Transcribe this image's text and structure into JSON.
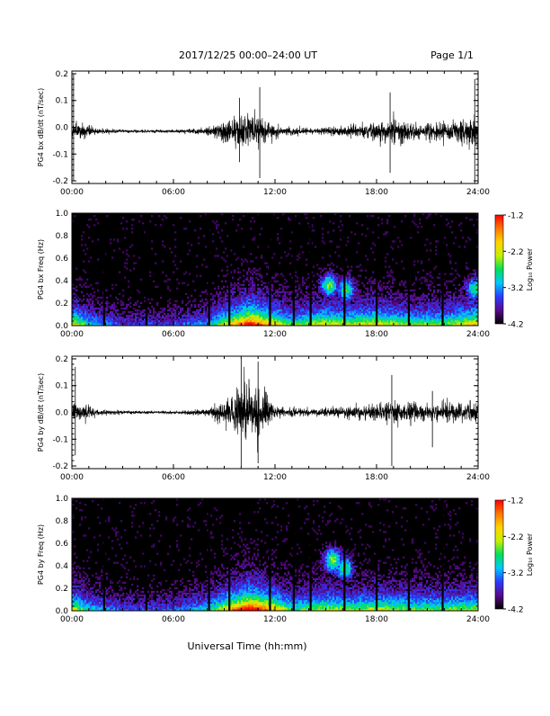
{
  "header": {
    "title": "2017/12/25  00:00–24:00 UT",
    "page": "Page 1/1"
  },
  "xlabel": "Universal Time (hh:mm)",
  "colorbar": {
    "label": "Log₁₀ Power",
    "ticks": [
      "-1.2",
      "-2.2",
      "-3.2",
      "-4.2"
    ],
    "range": [
      -4.2,
      -1.2
    ],
    "colors": [
      "#000000",
      "#5a0a8c",
      "#2a3cff",
      "#00c8ff",
      "#00e05a",
      "#c8f000",
      "#ffd400",
      "#ff7800",
      "#ff0000"
    ]
  },
  "chart_data": [
    {
      "type": "line",
      "ylabel": "PG4 bx dB/dt (nT/sec)",
      "x_range_hours": [
        0,
        24
      ],
      "xticks": [
        "00:00",
        "06:00",
        "12:00",
        "18:00",
        "24:00"
      ],
      "ylim": [
        -0.21,
        0.21
      ],
      "yticks": [
        "-0.2",
        "-0.1",
        "0.0",
        "0.1",
        "0.2"
      ],
      "baseline": -0.015,
      "activity": [
        {
          "hour": 0.0,
          "amp": 0.06
        },
        {
          "hour": 0.3,
          "amp": 0.05
        },
        {
          "hour": 1.5,
          "amp": 0.015
        },
        {
          "hour": 3.0,
          "amp": 0.008
        },
        {
          "hour": 6.0,
          "amp": 0.008
        },
        {
          "hour": 8.0,
          "amp": 0.02
        },
        {
          "hour": 9.5,
          "amp": 0.07
        },
        {
          "hour": 10.2,
          "amp": 0.12
        },
        {
          "hour": 11.0,
          "amp": 0.09
        },
        {
          "hour": 12.0,
          "amp": 0.03
        },
        {
          "hour": 14.0,
          "amp": 0.015
        },
        {
          "hour": 16.0,
          "amp": 0.03
        },
        {
          "hour": 18.0,
          "amp": 0.05
        },
        {
          "hour": 19.0,
          "amp": 0.07
        },
        {
          "hour": 20.5,
          "amp": 0.04
        },
        {
          "hour": 22.5,
          "amp": 0.06
        },
        {
          "hour": 24.0,
          "amp": 0.09
        }
      ],
      "spikes": [
        {
          "hour": 0.1,
          "min": -0.2,
          "max": 0.2
        },
        {
          "hour": 9.9,
          "min": -0.13,
          "max": 0.11
        },
        {
          "hour": 11.1,
          "min": -0.19,
          "max": 0.15
        },
        {
          "hour": 18.8,
          "min": -0.17,
          "max": 0.13
        },
        {
          "hour": 23.8,
          "min": -0.21,
          "max": 0.18
        }
      ]
    },
    {
      "type": "heatmap",
      "ylabel": "PG4 bx Freq (Hz)",
      "x_range_hours": [
        0,
        24
      ],
      "xticks": [
        "00:00",
        "06:00",
        "12:00",
        "18:00",
        "24:00"
      ],
      "ylim": [
        0.0,
        1.0
      ],
      "yticks": [
        "0.0",
        "0.2",
        "0.4",
        "0.6",
        "0.8",
        "1.0"
      ],
      "zlim": [
        -4.2,
        -1.2
      ],
      "activity": [
        {
          "hour": 0.0,
          "level": 0.55
        },
        {
          "hour": 1.0,
          "level": 0.35
        },
        {
          "hour": 3.0,
          "level": 0.2
        },
        {
          "hour": 6.0,
          "level": 0.2
        },
        {
          "hour": 8.0,
          "level": 0.3
        },
        {
          "hour": 9.5,
          "level": 0.6
        },
        {
          "hour": 10.5,
          "level": 0.8
        },
        {
          "hour": 11.5,
          "level": 0.65
        },
        {
          "hour": 13.0,
          "level": 0.4
        },
        {
          "hour": 15.0,
          "level": 0.55
        },
        {
          "hour": 16.5,
          "level": 0.5
        },
        {
          "hour": 18.0,
          "level": 0.55
        },
        {
          "hour": 20.0,
          "level": 0.45
        },
        {
          "hour": 22.0,
          "level": 0.45
        },
        {
          "hour": 24.0,
          "level": 0.6
        }
      ],
      "gaps_hours": [
        1.9,
        4.4,
        8.1,
        9.3,
        11.7,
        13.1,
        14.1,
        16.1,
        18.0,
        19.9,
        21.9
      ],
      "blobs": [
        {
          "hour": 15.2,
          "freq": 0.36,
          "level": 0.55
        },
        {
          "hour": 16.2,
          "freq": 0.32,
          "level": 0.5
        },
        {
          "hour": 23.8,
          "freq": 0.33,
          "level": 0.5
        }
      ]
    },
    {
      "type": "line",
      "ylabel": "PG4 by dB/dt (nT/sec)",
      "x_range_hours": [
        0,
        24
      ],
      "xticks": [
        "00:00",
        "06:00",
        "12:00",
        "18:00",
        "24:00"
      ],
      "ylim": [
        -0.21,
        0.21
      ],
      "yticks": [
        "-0.2",
        "-0.1",
        "0.0",
        "0.1",
        "0.2"
      ],
      "baseline": 0.0,
      "activity": [
        {
          "hour": 0.0,
          "amp": 0.06
        },
        {
          "hour": 0.3,
          "amp": 0.05
        },
        {
          "hour": 1.5,
          "amp": 0.02
        },
        {
          "hour": 3.0,
          "amp": 0.01
        },
        {
          "hour": 6.0,
          "amp": 0.008
        },
        {
          "hour": 8.0,
          "amp": 0.02
        },
        {
          "hour": 9.5,
          "amp": 0.1
        },
        {
          "hour": 10.3,
          "amp": 0.17
        },
        {
          "hour": 11.2,
          "amp": 0.13
        },
        {
          "hour": 12.0,
          "amp": 0.03
        },
        {
          "hour": 14.0,
          "amp": 0.02
        },
        {
          "hour": 16.0,
          "amp": 0.03
        },
        {
          "hour": 18.0,
          "amp": 0.05
        },
        {
          "hour": 19.0,
          "amp": 0.07
        },
        {
          "hour": 21.0,
          "amp": 0.04
        },
        {
          "hour": 22.5,
          "amp": 0.05
        },
        {
          "hour": 24.0,
          "amp": 0.06
        }
      ],
      "spikes": [
        {
          "hour": 0.2,
          "min": -0.16,
          "max": 0.17
        },
        {
          "hour": 10.0,
          "min": -0.2,
          "max": 0.2
        },
        {
          "hour": 11.0,
          "min": -0.19,
          "max": 0.19
        },
        {
          "hour": 18.9,
          "min": -0.2,
          "max": 0.14
        },
        {
          "hour": 21.3,
          "min": -0.13,
          "max": 0.08
        }
      ]
    },
    {
      "type": "heatmap",
      "ylabel": "PG4 by Freq (Hz)",
      "x_range_hours": [
        0,
        24
      ],
      "xticks": [
        "00:00",
        "06:00",
        "12:00",
        "18:00",
        "24:00"
      ],
      "ylim": [
        0.0,
        1.0
      ],
      "yticks": [
        "0.0",
        "0.2",
        "0.4",
        "0.6",
        "0.8",
        "1.0"
      ],
      "zlim": [
        -4.2,
        -1.2
      ],
      "activity": [
        {
          "hour": 0.0,
          "level": 0.55
        },
        {
          "hour": 1.0,
          "level": 0.35
        },
        {
          "hour": 3.0,
          "level": 0.22
        },
        {
          "hour": 6.0,
          "level": 0.22
        },
        {
          "hour": 8.0,
          "level": 0.35
        },
        {
          "hour": 9.5,
          "level": 0.65
        },
        {
          "hour": 10.5,
          "level": 0.85
        },
        {
          "hour": 11.5,
          "level": 0.7
        },
        {
          "hour": 13.0,
          "level": 0.4
        },
        {
          "hour": 15.0,
          "level": 0.5
        },
        {
          "hour": 16.5,
          "level": 0.45
        },
        {
          "hour": 18.0,
          "level": 0.5
        },
        {
          "hour": 20.0,
          "level": 0.45
        },
        {
          "hour": 22.0,
          "level": 0.45
        },
        {
          "hour": 24.0,
          "level": 0.5
        }
      ],
      "gaps_hours": [
        1.9,
        4.4,
        8.1,
        9.3,
        11.7,
        13.1,
        14.1,
        16.1,
        18.0,
        19.9,
        21.9
      ],
      "blobs": [
        {
          "hour": 15.4,
          "freq": 0.45,
          "level": 0.6
        },
        {
          "hour": 16.1,
          "freq": 0.38,
          "level": 0.5
        }
      ]
    }
  ]
}
